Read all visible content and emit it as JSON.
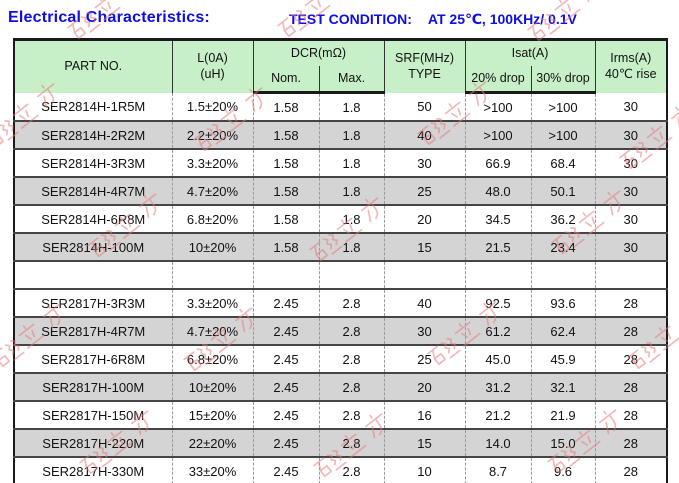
{
  "header": {
    "title": "Electrical Characteristics:",
    "test_condition_label": "TEST CONDITION:",
    "test_condition_value": "AT 25℃, 100KHz/ 0.1V"
  },
  "table": {
    "columns": {
      "part_no": "PART NO.",
      "l0a_line1": "L(0A)",
      "l0a_line2": "(uH)",
      "dcr_group": "DCR(mΩ)",
      "dcr_nom": "Nom.",
      "dcr_max": "Max.",
      "srf_line1": "SRF(MHz)",
      "srf_line2": "TYPE",
      "isat_group": "Isat(A)",
      "isat_20": "20% drop",
      "isat_30": "30% drop",
      "irms_line1": "Irms(A)",
      "irms_line2": "40℃ rise"
    },
    "rows": [
      {
        "part_no": "SER2814H-1R5M",
        "l": "1.5±20%",
        "nom": "1.58",
        "max": "1.8",
        "srf": "50",
        "isat20": ">100",
        "isat30": ">100",
        "irms": "30",
        "shaded": false
      },
      {
        "part_no": "SER2814H-2R2M",
        "l": "2.2±20%",
        "nom": "1.58",
        "max": "1.8",
        "srf": "40",
        "isat20": ">100",
        "isat30": ">100",
        "irms": "30",
        "shaded": true
      },
      {
        "part_no": "SER2814H-3R3M",
        "l": "3.3±20%",
        "nom": "1.58",
        "max": "1.8",
        "srf": "30",
        "isat20": "66.9",
        "isat30": "68.4",
        "irms": "30",
        "shaded": false
      },
      {
        "part_no": "SER2814H-4R7M",
        "l": "4.7±20%",
        "nom": "1.58",
        "max": "1.8",
        "srf": "25",
        "isat20": "48.0",
        "isat30": "50.1",
        "irms": "30",
        "shaded": true
      },
      {
        "part_no": "SER2814H-6R8M",
        "l": "6.8±20%",
        "nom": "1.58",
        "max": "1.8",
        "srf": "20",
        "isat20": "34.5",
        "isat30": "36.2",
        "irms": "30",
        "shaded": false
      },
      {
        "part_no": "SER2814H-100M",
        "l": "10±20%",
        "nom": "1.58",
        "max": "1.8",
        "srf": "15",
        "isat20": "21.5",
        "isat30": "23.4",
        "irms": "30",
        "shaded": true
      },
      {
        "separator": true,
        "part_no": "",
        "l": "",
        "nom": "",
        "max": "",
        "srf": "",
        "isat20": "",
        "isat30": "",
        "irms": "",
        "shaded": false
      },
      {
        "part_no": "SER2817H-3R3M",
        "l": "3.3±20%",
        "nom": "2.45",
        "max": "2.8",
        "srf": "40",
        "isat20": "92.5",
        "isat30": "93.6",
        "irms": "28",
        "shaded": false
      },
      {
        "part_no": "SER2817H-4R7M",
        "l": "4.7±20%",
        "nom": "2.45",
        "max": "2.8",
        "srf": "30",
        "isat20": "61.2",
        "isat30": "62.4",
        "irms": "28",
        "shaded": true
      },
      {
        "part_no": "SER2817H-6R8M",
        "l": "6.8±20%",
        "nom": "2.45",
        "max": "2.8",
        "srf": "25",
        "isat20": "45.0",
        "isat30": "45.9",
        "irms": "28",
        "shaded": false
      },
      {
        "part_no": "SER2817H-100M",
        "l": "10±20%",
        "nom": "2.45",
        "max": "2.8",
        "srf": "20",
        "isat20": "31.2",
        "isat30": "32.1",
        "irms": "28",
        "shaded": true
      },
      {
        "part_no": "SER2817H-150M",
        "l": "15±20%",
        "nom": "2.45",
        "max": "2.8",
        "srf": "16",
        "isat20": "21.2",
        "isat30": "21.9",
        "irms": "28",
        "shaded": false
      },
      {
        "part_no": "SER2817H-220M",
        "l": "22±20%",
        "nom": "2.45",
        "max": "2.8",
        "srf": "15",
        "isat20": "14.0",
        "isat30": "15.0",
        "irms": "28",
        "shaded": true
      },
      {
        "part_no": "SER2817H-330M",
        "l": "33±20%",
        "nom": "2.45",
        "max": "2.8",
        "srf": "10",
        "isat20": "8.7",
        "isat30": "9.6",
        "irms": "28",
        "shaded": false
      }
    ]
  },
  "watermark": {
    "text": "磁立方",
    "color": "#e87878"
  },
  "colors": {
    "title_blue": "#0d0de6",
    "header_green": "#c8f0c8",
    "shaded_row": "#d4d4d4",
    "border_dark": "#1a1a1a",
    "grid_line": "#454545",
    "dashed_line": "#9a9a9a",
    "watermark_red": "#e87878"
  }
}
